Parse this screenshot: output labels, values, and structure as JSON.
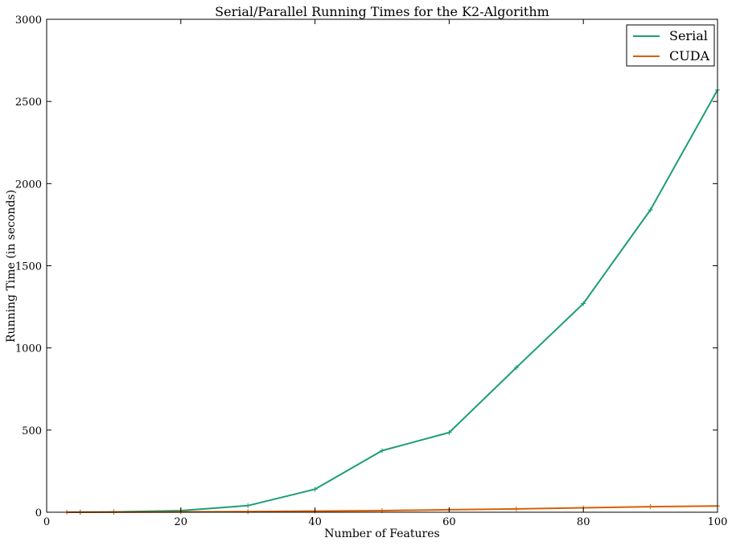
{
  "chart_data": {
    "type": "line",
    "title": "Serial/Parallel Running Times for the K2-Algorithm",
    "xlabel": "Number of Features",
    "ylabel": "Running Time (in seconds)",
    "xlim": [
      0,
      100
    ],
    "ylim": [
      0,
      3000
    ],
    "xticks": [
      0,
      20,
      40,
      60,
      80,
      100
    ],
    "yticks": [
      0,
      500,
      1000,
      1500,
      2000,
      2500,
      3000
    ],
    "grid": false,
    "legend_position": "top-right",
    "series": [
      {
        "name": "Serial",
        "color": "#1b9e77",
        "x": [
          3,
          5,
          10,
          20,
          30,
          40,
          50,
          60,
          70,
          80,
          90,
          100
        ],
        "y": [
          0,
          0.5,
          2,
          10,
          40,
          140,
          375,
          485,
          880,
          1270,
          1840,
          2570
        ]
      },
      {
        "name": "CUDA",
        "color": "#d95f02",
        "x": [
          3,
          5,
          10,
          20,
          30,
          40,
          50,
          60,
          70,
          80,
          90,
          100
        ],
        "y": [
          0,
          0.1,
          0.5,
          2,
          4,
          7,
          10,
          15,
          20,
          27,
          34,
          38
        ]
      }
    ]
  }
}
